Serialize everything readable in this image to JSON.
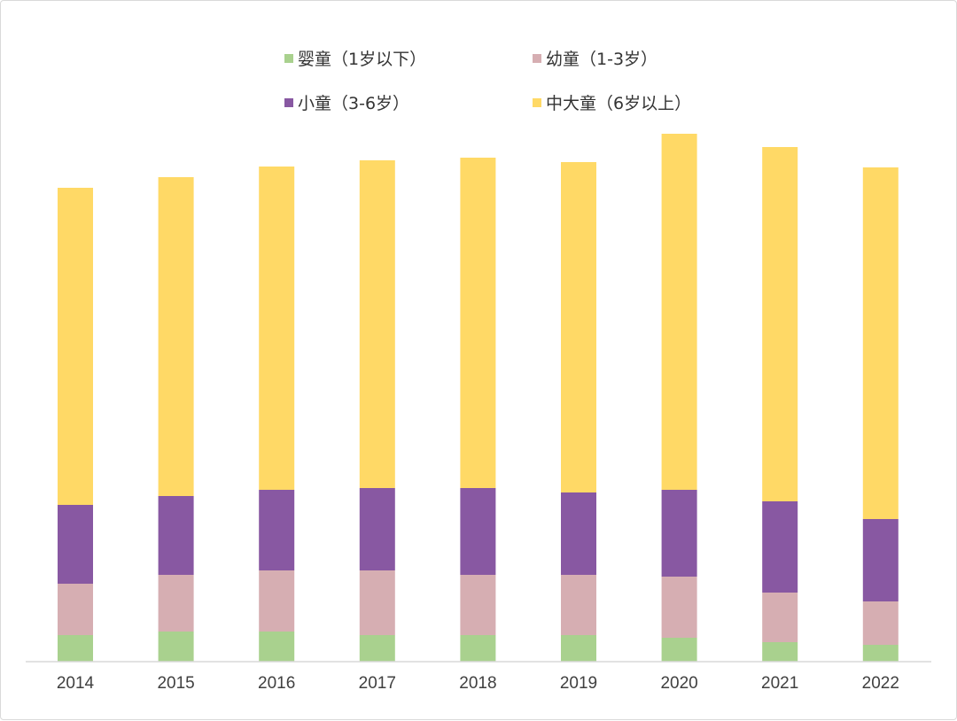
{
  "chart_data": {
    "type": "bar",
    "stacked": true,
    "title": "",
    "xlabel": "",
    "ylabel": "",
    "grid": false,
    "legend_position": "top",
    "categories": [
      "2014",
      "2015",
      "2016",
      "2017",
      "2018",
      "2019",
      "2020",
      "2021",
      "2022"
    ],
    "series": [
      {
        "name": "婴童（1岁以下）",
        "color": "#a9d18e",
        "values": [
          30,
          34,
          34,
          30,
          30,
          30,
          27,
          22,
          19
        ]
      },
      {
        "name": "幼童（1-3岁）",
        "color": "#d6aeb2",
        "values": [
          58,
          64,
          69,
          73,
          68,
          68,
          69,
          56,
          49
        ]
      },
      {
        "name": "小童（3-6岁）",
        "color": "#8858a2",
        "values": [
          89,
          89,
          91,
          93,
          98,
          93,
          98,
          103,
          93
        ]
      },
      {
        "name": "中大童（6岁以上）",
        "color": "#ffd966",
        "values": [
          358,
          360,
          365,
          370,
          373,
          373,
          402,
          400,
          397
        ]
      }
    ]
  }
}
